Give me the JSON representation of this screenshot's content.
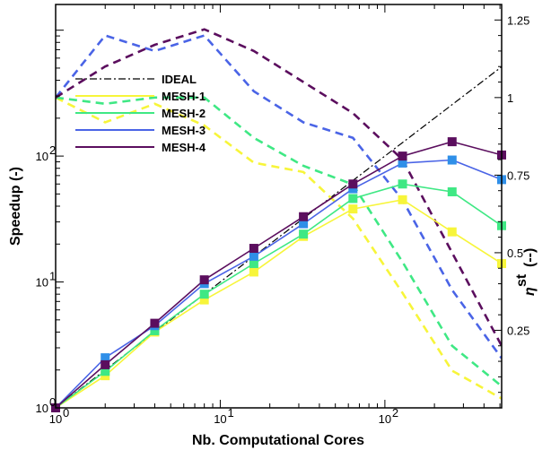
{
  "chart_data": {
    "type": "line",
    "xlabel": "Nb. Computational Cores",
    "ylabel": "Speedup (-)",
    "y2label": "η",
    "y2label_sup": "st",
    "y2label_unit": "(--)",
    "x_scale": "log2",
    "y_scale": "log10",
    "xlim": [
      1,
      512
    ],
    "ylim": [
      1,
      1600
    ],
    "y2lim": [
      0,
      1.3
    ],
    "x_ticks": [
      1,
      10,
      100
    ],
    "x_tick_labels": [
      [
        "10",
        "0"
      ],
      [
        "10",
        "1"
      ],
      [
        "10",
        "2"
      ]
    ],
    "y_ticks": [
      1,
      10,
      100
    ],
    "y_tick_labels": [
      [
        "10",
        "0"
      ],
      [
        "10",
        "1"
      ],
      [
        "10",
        "2"
      ]
    ],
    "y2_ticks": [
      0.25,
      0.5,
      0.75,
      1,
      1.25
    ],
    "y2_tick_labels": [
      "0.25",
      "0.5",
      "0.75",
      "1",
      "1.25"
    ],
    "grid": false,
    "legend_position": "left",
    "x": [
      1,
      2,
      4,
      8,
      16,
      32,
      64,
      128,
      256,
      512
    ],
    "ideal": {
      "name": "IDEAL",
      "color": "#000000",
      "x": [
        1,
        512
      ],
      "y": [
        1,
        512
      ]
    },
    "series": [
      {
        "name": "MESH-1",
        "color": "#f7f53a",
        "speedup": [
          1,
          1.8,
          4.0,
          7.2,
          12,
          23,
          38,
          45,
          25,
          14
        ],
        "efficiency": [
          1.0,
          0.92,
          0.98,
          0.91,
          0.79,
          0.76,
          0.61,
          0.37,
          0.12,
          0.03
        ]
      },
      {
        "name": "MESH-2",
        "color": "#3fe884",
        "speedup": [
          1,
          1.95,
          4.1,
          8.0,
          14,
          24,
          46,
          60,
          52,
          28
        ],
        "efficiency": [
          1.0,
          0.98,
          1.0,
          1.0,
          0.87,
          0.78,
          0.72,
          0.47,
          0.2,
          0.07
        ]
      },
      {
        "name": "MESH-3",
        "color": "#4a64e6",
        "speedup": [
          1,
          2.5,
          4.5,
          9.7,
          16,
          29,
          55,
          88,
          93,
          65
        ],
        "efficiency": [
          1.0,
          1.2,
          1.15,
          1.2,
          1.02,
          0.92,
          0.87,
          0.67,
          0.38,
          0.16
        ]
      },
      {
        "name": "MESH-4",
        "color": "#5b0e5e",
        "speedup": [
          1,
          2.2,
          4.7,
          10.4,
          18.5,
          33,
          60,
          100,
          130,
          102
        ],
        "efficiency": [
          1.0,
          1.1,
          1.17,
          1.22,
          1.15,
          1.05,
          0.95,
          0.8,
          0.5,
          0.2
        ]
      }
    ]
  }
}
